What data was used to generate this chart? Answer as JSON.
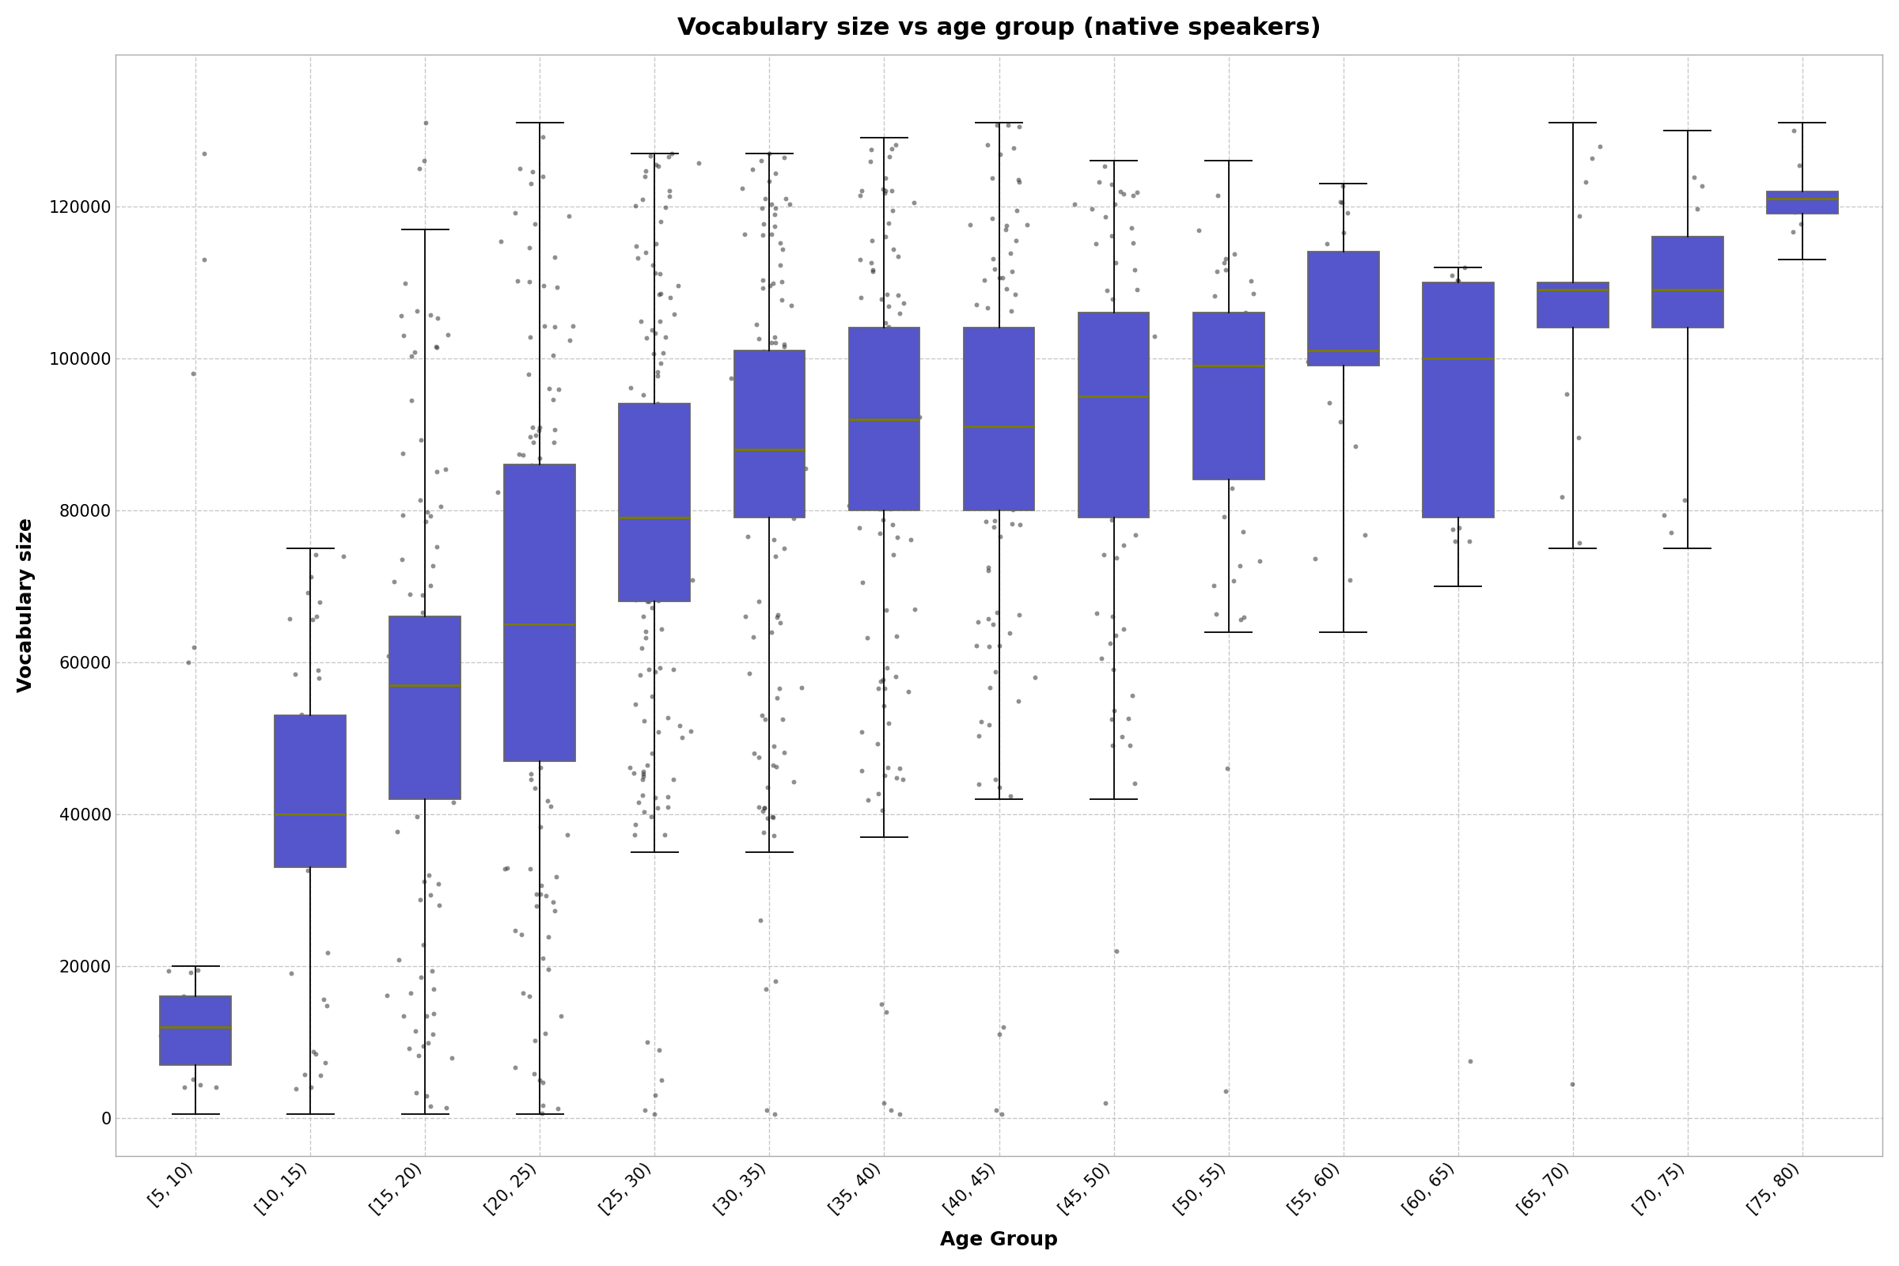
{
  "title": "Vocabulary size vs age group (native speakers)",
  "xlabel": "Age Group",
  "ylabel": "Vocabulary size",
  "age_groups": [
    "[5, 10)",
    "[10, 15)",
    "[15, 20)",
    "[20, 25)",
    "[25, 30)",
    "[30, 35)",
    "[35, 40)",
    "[40, 45)",
    "[45, 50)",
    "[50, 55)",
    "[55, 60)",
    "[60, 65)",
    "[65, 70)",
    "[70, 75)",
    "[75, 80)"
  ],
  "box_color": "#5555cc",
  "box_edge_color": "#666666",
  "median_color": "#7a7a00",
  "whisker_color": "#111111",
  "point_color": "#333333",
  "background_color": "#ffffff",
  "grid_color": "#bbbbbb",
  "box_stats": [
    {
      "q1": 7000,
      "median": 12000,
      "q3": 16000,
      "whisker_low": 500,
      "whisker_high": 20000
    },
    {
      "q1": 33000,
      "median": 40000,
      "q3": 53000,
      "whisker_low": 500,
      "whisker_high": 75000
    },
    {
      "q1": 42000,
      "median": 57000,
      "q3": 66000,
      "whisker_low": 500,
      "whisker_high": 117000
    },
    {
      "q1": 47000,
      "median": 65000,
      "q3": 86000,
      "whisker_low": 500,
      "whisker_high": 131000
    },
    {
      "q1": 68000,
      "median": 79000,
      "q3": 94000,
      "whisker_low": 35000,
      "whisker_high": 127000
    },
    {
      "q1": 79000,
      "median": 88000,
      "q3": 101000,
      "whisker_low": 35000,
      "whisker_high": 127000
    },
    {
      "q1": 80000,
      "median": 92000,
      "q3": 104000,
      "whisker_low": 37000,
      "whisker_high": 129000
    },
    {
      "q1": 80000,
      "median": 91000,
      "q3": 104000,
      "whisker_low": 42000,
      "whisker_high": 131000
    },
    {
      "q1": 79000,
      "median": 95000,
      "q3": 106000,
      "whisker_low": 42000,
      "whisker_high": 126000
    },
    {
      "q1": 84000,
      "median": 99000,
      "q3": 106000,
      "whisker_low": 64000,
      "whisker_high": 126000
    },
    {
      "q1": 99000,
      "median": 101000,
      "q3": 114000,
      "whisker_low": 64000,
      "whisker_high": 123000
    },
    {
      "q1": 79000,
      "median": 100000,
      "q3": 110000,
      "whisker_low": 70000,
      "whisker_high": 112000
    },
    {
      "q1": 104000,
      "median": 109000,
      "q3": 110000,
      "whisker_low": 75000,
      "whisker_high": 131000
    },
    {
      "q1": 104000,
      "median": 109000,
      "q3": 116000,
      "whisker_low": 75000,
      "whisker_high": 130000
    },
    {
      "q1": 119000,
      "median": 121000,
      "q3": 122000,
      "whisker_low": 113000,
      "whisker_high": 131000
    }
  ],
  "outliers": [
    [
      [
        127000,
        113000,
        98000,
        62000,
        60000
      ]
    ],
    [
      []
    ],
    [
      [
        131000,
        126000,
        125000
      ]
    ],
    [
      []
    ],
    [
      [
        500,
        1000,
        3000,
        5000,
        9000,
        10000
      ]
    ],
    [
      [
        500,
        1000,
        17000,
        18000,
        26000
      ]
    ],
    [
      [
        500,
        1000,
        2000,
        14000,
        15000
      ]
    ],
    [
      [
        500,
        1000,
        11000,
        12000
      ]
    ],
    [
      [
        2000,
        22000
      ]
    ],
    [
      [
        3500,
        46000
      ]
    ],
    [
      []
    ],
    [
      [
        7500
      ]
    ],
    [
      [
        4500
      ]
    ],
    [
      []
    ],
    [
      []
    ]
  ],
  "n_points": [
    20,
    60,
    150,
    180,
    200,
    180,
    160,
    140,
    100,
    50,
    30,
    20,
    20,
    15,
    12
  ],
  "ylim": [
    -5000,
    140000
  ],
  "yticks": [
    0,
    20000,
    40000,
    60000,
    80000,
    100000,
    120000
  ],
  "title_fontsize": 22,
  "label_fontsize": 18,
  "tick_fontsize": 15,
  "box_width": 0.62,
  "jitter_std": 0.12,
  "alpha_points": 0.55,
  "point_size": 18
}
